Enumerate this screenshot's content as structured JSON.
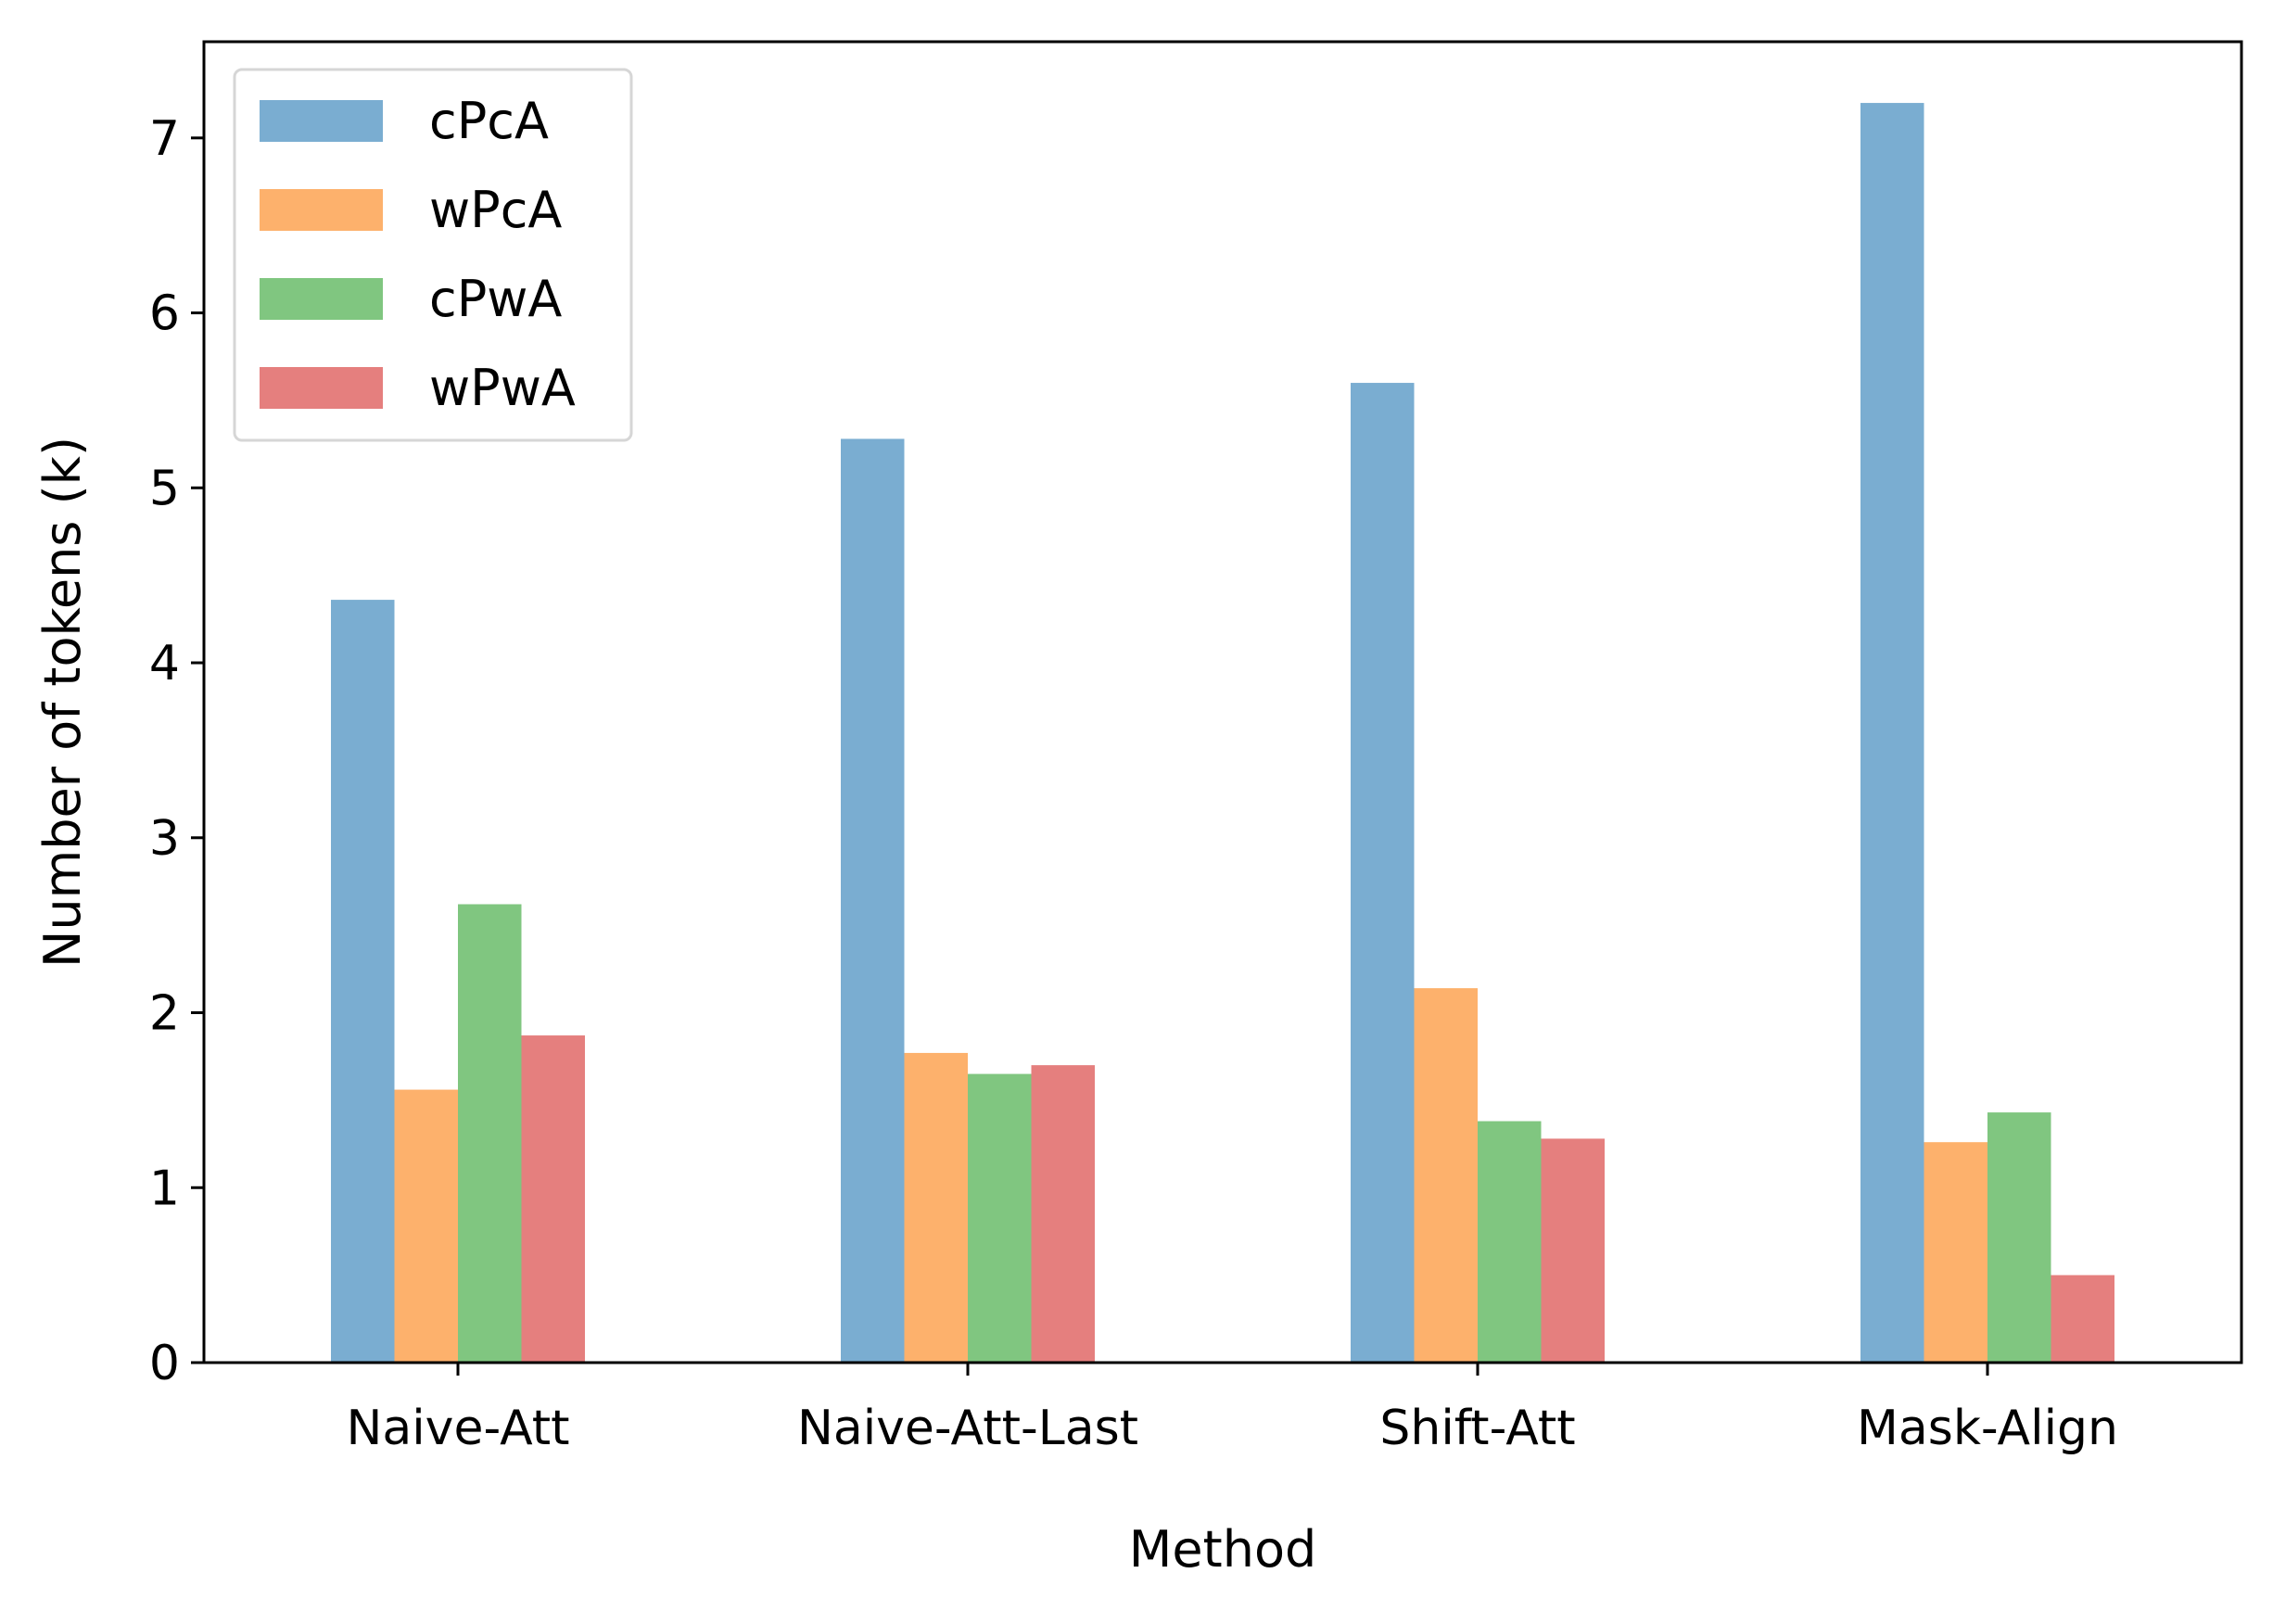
{
  "chart_data": {
    "type": "bar",
    "title": "",
    "xlabel": "Method",
    "ylabel": "Number of tokens (k)",
    "categories": [
      "Naive-Att",
      "Naive-Att-Last",
      "Shift-Att",
      "Mask-Align"
    ],
    "series": [
      {
        "name": "cPcA",
        "color": "#7aadd1",
        "values": [
          4.36,
          5.28,
          5.6,
          7.2
        ]
      },
      {
        "name": "wPcA",
        "color": "#fdb16c",
        "values": [
          1.56,
          1.77,
          2.14,
          1.26
        ]
      },
      {
        "name": "cPwA",
        "color": "#80c680",
        "values": [
          2.62,
          1.65,
          1.38,
          1.43
        ]
      },
      {
        "name": "wPwA",
        "color": "#e57f7e",
        "values": [
          1.87,
          1.7,
          1.28,
          0.5
        ]
      }
    ],
    "ylim": [
      0,
      7.55
    ],
    "yticks": [
      "0",
      "1",
      "2",
      "3",
      "4",
      "5",
      "6",
      "7"
    ],
    "grid": false,
    "legend_position": "top-left"
  }
}
